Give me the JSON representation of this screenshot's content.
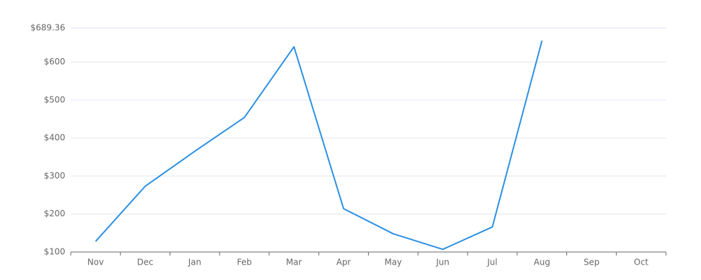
{
  "chart_data": {
    "type": "line",
    "categories": [
      "Nov",
      "Dec",
      "Jan",
      "Feb",
      "Mar",
      "Apr",
      "May",
      "Jun",
      "Jul",
      "Aug",
      "Sep",
      "Oct"
    ],
    "series": [
      {
        "color": "#2b8fe3",
        "values": [
          128,
          273,
          365,
          454,
          640,
          214,
          148,
          107,
          166,
          656,
          null,
          null
        ]
      }
    ],
    "ylim": [
      100,
      689.36
    ],
    "yticks": [
      {
        "value": 100,
        "label": "$100"
      },
      {
        "value": 200,
        "label": "$200"
      },
      {
        "value": 300,
        "label": "$300"
      },
      {
        "value": 400,
        "label": "$400"
      },
      {
        "value": 500,
        "label": "$500"
      },
      {
        "value": 600,
        "label": "$600"
      },
      {
        "value": 689.36,
        "label": "$689.36"
      }
    ],
    "grid": true
  }
}
